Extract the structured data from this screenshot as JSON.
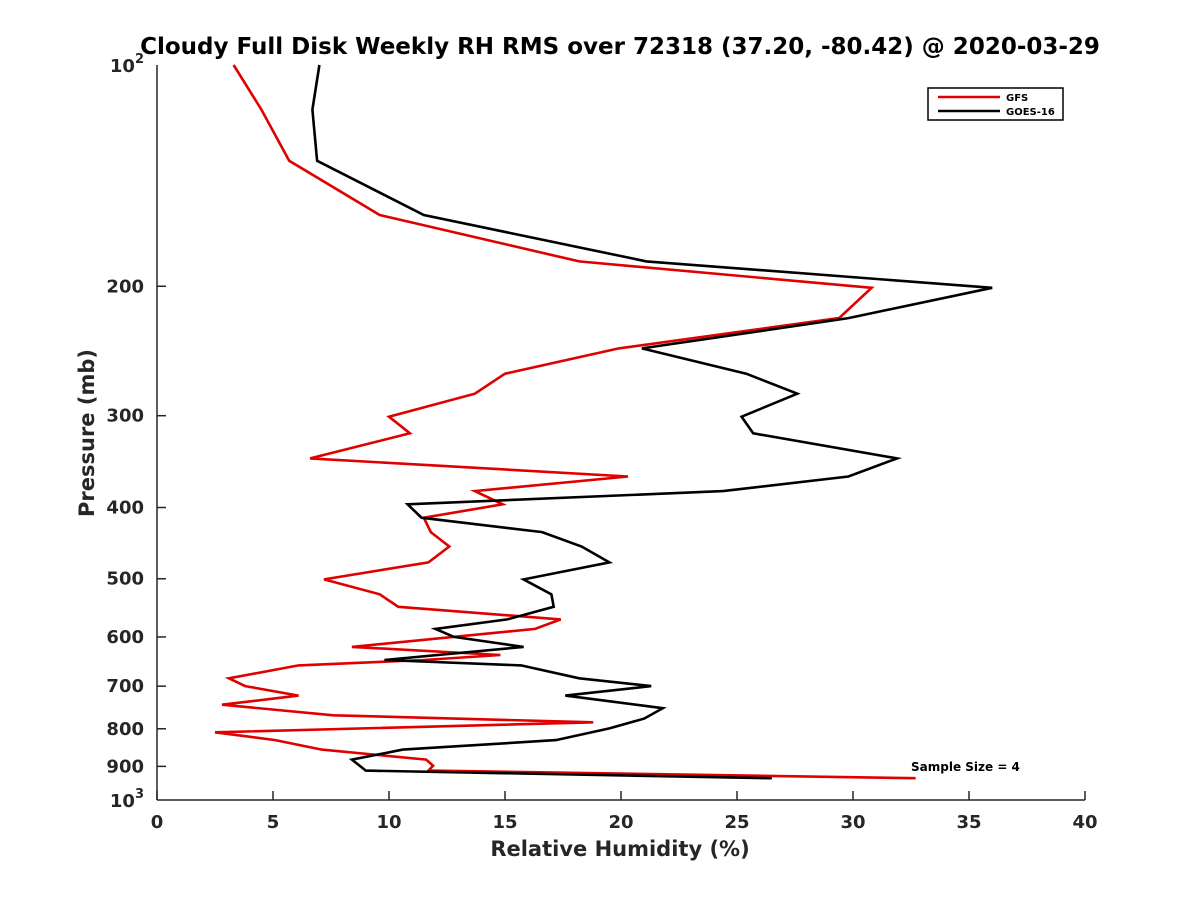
{
  "chart_data": {
    "type": "line",
    "title": "Cloudy Full Disk Weekly RH RMS over 72318 (37.20, -80.42) @ 2020-03-29",
    "xlabel": "Relative Humidity (%)",
    "ylabel": "Pressure (mb)",
    "xlim": [
      0,
      40
    ],
    "ylim": [
      100,
      1000
    ],
    "yscale": "log",
    "y_reversed": true,
    "x_ticks": [
      0,
      5,
      10,
      15,
      20,
      25,
      30,
      35,
      40
    ],
    "x_tick_labels": [
      "0",
      "5",
      "10",
      "15",
      "20",
      "25",
      "30",
      "35",
      "40"
    ],
    "y_ticks": [
      200,
      300,
      400,
      500,
      600,
      700,
      800,
      900
    ],
    "y_tick_labels": [
      "200",
      "300",
      "400",
      "500",
      "600",
      "700",
      "800",
      "900"
    ],
    "y_end_labels": [
      {
        "value": 100,
        "base": "10",
        "exp": "2"
      },
      {
        "value": 1000,
        "base": "10",
        "exp": "3"
      }
    ],
    "grid": false,
    "legend_position": "top-right",
    "annotation": "Sample Size = 4",
    "series": [
      {
        "name": "GFS",
        "color": "#e00000",
        "points": [
          [
            3.3,
            100
          ],
          [
            4.5,
            115
          ],
          [
            5.7,
            135
          ],
          [
            9.6,
            160
          ],
          [
            18.2,
            185
          ],
          [
            30.8,
            201
          ],
          [
            29.4,
            221
          ],
          [
            19.9,
            243
          ],
          [
            15.0,
            263
          ],
          [
            13.7,
            280
          ],
          [
            10.0,
            301
          ],
          [
            10.9,
            317
          ],
          [
            6.6,
            343
          ],
          [
            20.3,
            363
          ],
          [
            13.7,
            380
          ],
          [
            14.9,
            396
          ],
          [
            11.5,
            413
          ],
          [
            11.8,
            432
          ],
          [
            12.6,
            452
          ],
          [
            11.7,
            475
          ],
          [
            7.2,
            501
          ],
          [
            9.6,
            525
          ],
          [
            10.4,
            546
          ],
          [
            17.4,
            568
          ],
          [
            16.3,
            585
          ],
          [
            8.4,
            619
          ],
          [
            14.8,
            635
          ],
          [
            11.5,
            645
          ],
          [
            6.1,
            656
          ],
          [
            3.1,
            683
          ],
          [
            3.8,
            700
          ],
          [
            6.1,
            721
          ],
          [
            2.8,
            742
          ],
          [
            7.6,
            767
          ],
          [
            18.8,
            784
          ],
          [
            2.5,
            809
          ],
          [
            5.1,
            829
          ],
          [
            7.1,
            854
          ],
          [
            11.6,
            881
          ],
          [
            11.9,
            898
          ],
          [
            11.7,
            912
          ],
          [
            32.7,
            934
          ]
        ]
      },
      {
        "name": "GOES-16",
        "color": "#000000",
        "points": [
          [
            7.0,
            100
          ],
          [
            6.7,
            115
          ],
          [
            6.9,
            135
          ],
          [
            11.5,
            160
          ],
          [
            21.1,
            185
          ],
          [
            36.0,
            201
          ],
          [
            29.8,
            221
          ],
          [
            20.9,
            243
          ],
          [
            25.4,
            263
          ],
          [
            27.6,
            280
          ],
          [
            25.2,
            301
          ],
          [
            25.7,
            317
          ],
          [
            31.9,
            343
          ],
          [
            29.8,
            363
          ],
          [
            24.4,
            380
          ],
          [
            10.8,
            396
          ],
          [
            11.4,
            413
          ],
          [
            16.6,
            432
          ],
          [
            18.3,
            452
          ],
          [
            19.5,
            475
          ],
          [
            15.8,
            501
          ],
          [
            17.0,
            525
          ],
          [
            17.1,
            546
          ],
          [
            15.1,
            568
          ],
          [
            12.0,
            585
          ],
          [
            12.8,
            600
          ],
          [
            15.8,
            619
          ],
          [
            9.8,
            645
          ],
          [
            15.7,
            656
          ],
          [
            18.2,
            683
          ],
          [
            21.3,
            700
          ],
          [
            17.6,
            721
          ],
          [
            21.8,
            750
          ],
          [
            21.0,
            775
          ],
          [
            19.5,
            799
          ],
          [
            17.2,
            829
          ],
          [
            10.6,
            854
          ],
          [
            8.4,
            881
          ],
          [
            9.0,
            912
          ],
          [
            26.5,
            934
          ]
        ]
      }
    ]
  }
}
